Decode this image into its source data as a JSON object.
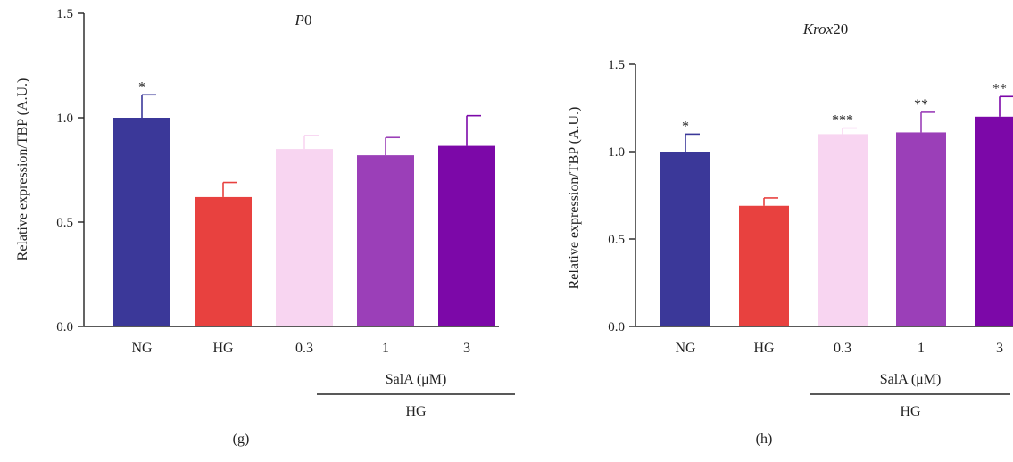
{
  "chart_data": [
    {
      "type": "bar",
      "title": "P0",
      "title_italic_part": "P",
      "title_rest": "0",
      "panel_label": "(g)",
      "ylabel": "Relative expression/TBP (A.U.)",
      "ylim": [
        0,
        1.5
      ],
      "yticks": [
        "0.0",
        "0.5",
        "1.0",
        "1.5"
      ],
      "categories": [
        "NG",
        "HG",
        "0.3",
        "1",
        "3"
      ],
      "values": [
        1.0,
        0.62,
        0.85,
        0.82,
        0.865
      ],
      "errors": [
        0.11,
        0.07,
        0.065,
        0.085,
        0.145
      ],
      "significance": [
        "*",
        "",
        "",
        "",
        ""
      ],
      "colors": [
        "#3b3899",
        "#e8413f",
        "#f8d5f1",
        "#9b3fb8",
        "#7c08a8"
      ],
      "group_label_top": "SalA (μM)",
      "group_label_bottom": "HG"
    },
    {
      "type": "bar",
      "title": "Krox20",
      "title_italic_part": "Krox",
      "title_rest": "20",
      "panel_label": "(h)",
      "ylabel": "Relative expression/TBP (A.U.)",
      "ylim": [
        0,
        1.5
      ],
      "yticks": [
        "0.0",
        "0.5",
        "1.0",
        "1.5"
      ],
      "categories": [
        "NG",
        "HG",
        "0.3",
        "1",
        "3"
      ],
      "values": [
        1.0,
        0.69,
        1.1,
        1.11,
        1.2
      ],
      "errors": [
        0.1,
        0.045,
        0.035,
        0.115,
        0.115
      ],
      "significance": [
        "*",
        "",
        "***",
        "**",
        "**"
      ],
      "colors": [
        "#3b3899",
        "#e8413f",
        "#f8d5f1",
        "#9b3fb8",
        "#7c08a8"
      ],
      "group_label_top": "SalA (μM)",
      "group_label_bottom": "HG"
    }
  ]
}
